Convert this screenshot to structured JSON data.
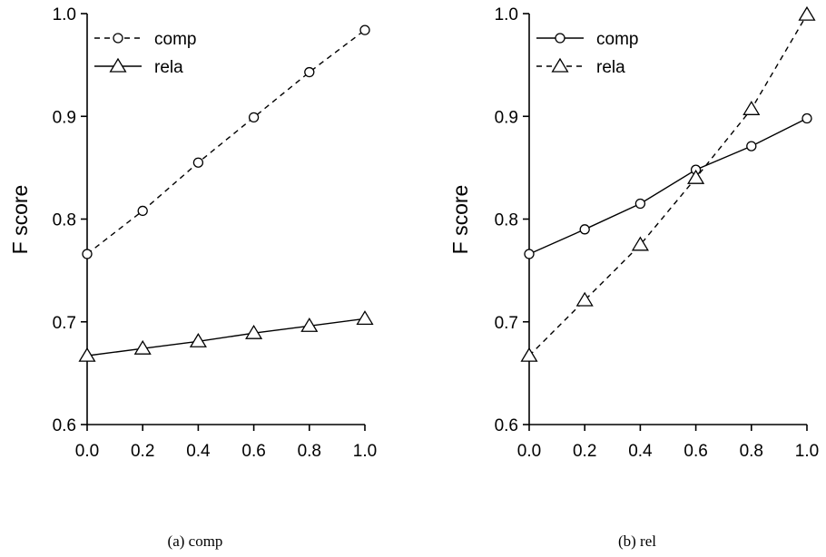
{
  "chart_data": [
    {
      "type": "line",
      "caption": "(a) comp",
      "xlabel": "",
      "ylabel": "F score",
      "xlim": [
        0.0,
        1.0
      ],
      "ylim": [
        0.6,
        1.0
      ],
      "xticks": [
        "0.0",
        "0.2",
        "0.4",
        "0.6",
        "0.8",
        "1.0"
      ],
      "yticks": [
        "0.6",
        "0.7",
        "0.8",
        "0.9",
        "1.0"
      ],
      "legend_position": "top-left",
      "x": [
        0.0,
        0.2,
        0.4,
        0.6,
        0.8,
        1.0
      ],
      "series": [
        {
          "name": "comp",
          "marker": "circle",
          "linestyle": "dashed",
          "values": [
            0.766,
            0.808,
            0.855,
            0.899,
            0.943,
            0.984
          ]
        },
        {
          "name": "rela",
          "marker": "triangle",
          "linestyle": "solid",
          "values": [
            0.667,
            0.674,
            0.681,
            0.689,
            0.696,
            0.703
          ]
        }
      ]
    },
    {
      "type": "line",
      "caption": "(b) rel",
      "xlabel": "",
      "ylabel": "F score",
      "xlim": [
        0.0,
        1.0
      ],
      "ylim": [
        0.6,
        1.0
      ],
      "xticks": [
        "0.0",
        "0.2",
        "0.4",
        "0.6",
        "0.8",
        "1.0"
      ],
      "yticks": [
        "0.6",
        "0.7",
        "0.8",
        "0.9",
        "1.0"
      ],
      "legend_position": "top-left",
      "x": [
        0.0,
        0.2,
        0.4,
        0.6,
        0.8,
        1.0
      ],
      "series": [
        {
          "name": "comp",
          "marker": "circle",
          "linestyle": "solid",
          "values": [
            0.766,
            0.79,
            0.815,
            0.848,
            0.871,
            0.898
          ]
        },
        {
          "name": "rela",
          "marker": "triangle",
          "linestyle": "dashed",
          "values": [
            0.667,
            0.721,
            0.775,
            0.84,
            0.907,
            0.999
          ]
        }
      ]
    }
  ]
}
